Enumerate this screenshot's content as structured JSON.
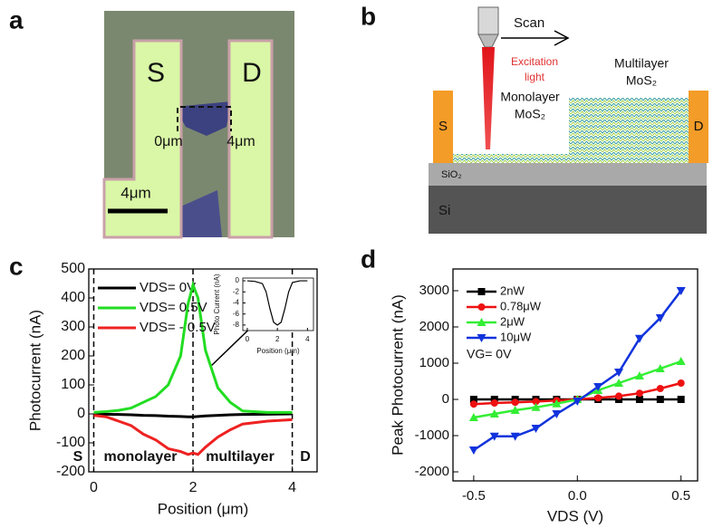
{
  "panels": [
    "a",
    "b",
    "c",
    "d"
  ],
  "micrograph": {
    "source": "S",
    "drain": "D",
    "start_mark": "0μm",
    "end_mark": "4μm",
    "scale_bar": "4μm"
  },
  "schematic": {
    "scan": "Scan",
    "excitation_label": [
      "Excitation",
      "light"
    ],
    "monolayer_label": [
      "Monolayer",
      "MoS₂"
    ],
    "multilayer_label": [
      "Multilayer",
      "MoS₂"
    ],
    "source": "S",
    "drain": "D",
    "oxide": "SiO₂",
    "substrate": "Si"
  },
  "chart_data": [
    {
      "type": "line",
      "xlabel": "Position (μm)",
      "ylabel": "Photocurrent (nA)",
      "x": [
        0,
        0.25,
        0.5,
        0.75,
        1.0,
        1.25,
        1.5,
        1.75,
        1.9,
        2.0,
        2.1,
        2.25,
        2.5,
        2.75,
        3.0,
        3.5,
        4.0
      ],
      "series": [
        {
          "name": "VDS= 0V",
          "color": "#000000",
          "values": [
            0,
            -1,
            -2,
            -3,
            -5,
            -6,
            -8,
            -9,
            -10,
            -10,
            -9,
            -7,
            -5,
            -3,
            -2,
            -1,
            0
          ]
        },
        {
          "name": "VDS= 0.5V",
          "color": "#22dd22",
          "values": [
            5,
            8,
            12,
            20,
            40,
            60,
            100,
            200,
            380,
            445,
            400,
            220,
            90,
            40,
            10,
            5,
            5
          ]
        },
        {
          "name": "VDS= - 0.5V",
          "color": "#ee2222",
          "values": [
            -5,
            -10,
            -25,
            -40,
            -70,
            -90,
            -120,
            -130,
            -140,
            -135,
            -140,
            -115,
            -80,
            -55,
            -35,
            -25,
            -20
          ]
        }
      ],
      "xlim": [
        -0.1,
        4.5
      ],
      "ylim": [
        -200,
        500
      ],
      "xticks": [
        0,
        2,
        4
      ],
      "yticks": [
        -200,
        -100,
        0,
        100,
        200,
        300,
        400,
        500
      ],
      "legend": "upper left",
      "annotations": [
        "S",
        "monolayer",
        "multilayer",
        "D"
      ]
    },
    {
      "type": "line",
      "xlabel": "VDS (V)",
      "ylabel": "Peak Photocurrent (nA)",
      "x": [
        -0.5,
        -0.4,
        -0.3,
        -0.2,
        -0.1,
        0,
        0.1,
        0.2,
        0.3,
        0.4,
        0.5
      ],
      "series": [
        {
          "name": "2nW",
          "color": "#000000",
          "marker": "square",
          "values": [
            0,
            0,
            0,
            0,
            0,
            0,
            0,
            0,
            0,
            0,
            0
          ]
        },
        {
          "name": "0.78μW",
          "color": "#ee1111",
          "marker": "circle",
          "values": [
            -130,
            -100,
            -80,
            -60,
            -30,
            0,
            40,
            90,
            170,
            300,
            450
          ]
        },
        {
          "name": "2μW",
          "color": "#33ee33",
          "marker": "triangle-up",
          "values": [
            -500,
            -400,
            -300,
            -220,
            -120,
            0,
            250,
            450,
            650,
            850,
            1050
          ]
        },
        {
          "name": "10μW",
          "color": "#1133dd",
          "marker": "triangle-down",
          "values": [
            -1400,
            -1020,
            -1020,
            -800,
            -400,
            -50,
            350,
            750,
            1680,
            2250,
            3000
          ]
        }
      ],
      "xlim": [
        -0.6,
        0.58
      ],
      "ylim": [
        -2250,
        3600
      ],
      "xticks": [
        -0.5,
        {
          "value": 0,
          "label": "0.0"
        },
        0.5
      ],
      "yticks": [
        -2000,
        -1000,
        0,
        1000,
        2000,
        3000
      ],
      "legend": "upper left",
      "annotations": [
        "VG= 0V"
      ]
    },
    {
      "type": "line",
      "xlabel": "Position (μm)",
      "ylabel": "Photo Current (nA)",
      "x": [
        0,
        0.5,
        1,
        1.25,
        1.5,
        1.75,
        2,
        2.25,
        2.5,
        2.75,
        3,
        3.5,
        4
      ],
      "series": [
        {
          "color": "#000000",
          "values": [
            0,
            -0.1,
            -0.5,
            -2,
            -5,
            -7.5,
            -8,
            -7.5,
            -5,
            -2,
            -0.3,
            0,
            0
          ]
        }
      ],
      "xlim": [
        -0.3,
        4.4
      ],
      "ylim": [
        -9,
        0.5
      ],
      "xticks": [
        0,
        2,
        4
      ],
      "yticks": [
        0,
        -2,
        -4,
        -6,
        -8
      ]
    }
  ]
}
